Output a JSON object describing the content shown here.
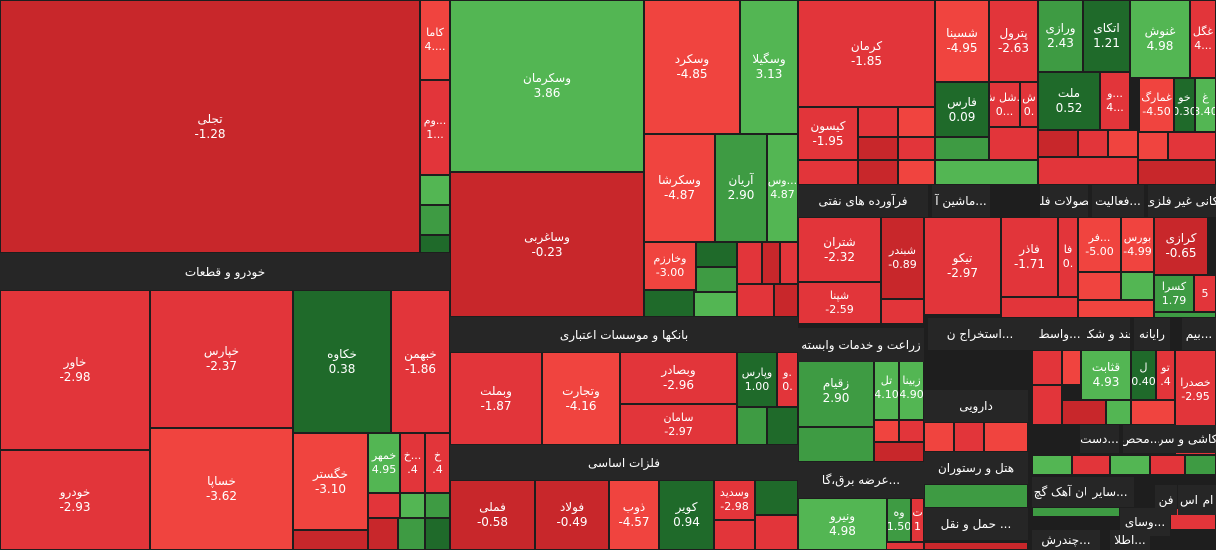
{
  "chart_data": {
    "type": "heatmap",
    "colors": {
      "strong_red": "#c8272b",
      "mid_red": "#e2353a",
      "light_red": "#f0443f",
      "dark_green": "#1f6a2a",
      "mid_green": "#3e9b43",
      "light_green": "#53b653",
      "header_bg": "#262626"
    },
    "sectors": [
      "خودرو و قطعات",
      "بانکها و موسسات اعتباری",
      "فلزات اساسی",
      "فرآورده های نفتی",
      "محصولات فلزی",
      "ماشین آ...",
      "فعالیت...",
      "کانی غیر فلزی",
      "زراعت و خدمات وابسته",
      "عرضه برق،گا...",
      "استخراج ن...",
      "قند و شکر",
      "واسط...",
      "رایانه",
      "بیم...",
      "دارویی",
      "هتل و رستوران",
      "حمل و نقل ...",
      "کاشی و سرامیک",
      "دست...",
      "محص...",
      "سیمان آهک گچ",
      "سایر...",
      "فن",
      "اس",
      "ام",
      "وسای...",
      "چندرش...",
      "اطلا..."
    ],
    "symbols": [
      {
        "name": "تجلی",
        "change": -1.28
      },
      {
        "name": "کاما",
        "change": "4...."
      },
      {
        "name": "وم...",
        "change": "1..."
      },
      {
        "name": "خاور",
        "change": -2.98
      },
      {
        "name": "خودرو",
        "change": -2.93
      },
      {
        "name": "خپارس",
        "change": -2.37
      },
      {
        "name": "خساپا",
        "change": -3.62
      },
      {
        "name": "خکاوه",
        "change": 0.38
      },
      {
        "name": "خبهمن",
        "change": -1.86
      },
      {
        "name": "خگستر",
        "change": -3.1
      },
      {
        "name": "خمهر",
        "change": 4.95
      },
      {
        "name": "خ...",
        "change": ".4"
      },
      {
        "name": "خ",
        "change": ".4"
      },
      {
        "name": "وسکرمان",
        "change": 3.86
      },
      {
        "name": "وساغربی",
        "change": -0.23
      },
      {
        "name": "وسکرد",
        "change": -4.85
      },
      {
        "name": "وسگیلا",
        "change": 3.13
      },
      {
        "name": "وسکرشا",
        "change": -4.87
      },
      {
        "name": "آریان",
        "change": 2.9
      },
      {
        "name": "وس...",
        "change": 4.87
      },
      {
        "name": "وخارزم",
        "change": -3.0
      },
      {
        "name": "وبملت",
        "change": -1.87
      },
      {
        "name": "وتجارت",
        "change": -4.16
      },
      {
        "name": "وبصادر",
        "change": -2.96
      },
      {
        "name": "سامان",
        "change": -2.97
      },
      {
        "name": "وپارس",
        "change": 1.0
      },
      {
        "name": "و.",
        "change": "0."
      },
      {
        "name": "فملی",
        "change": -0.58
      },
      {
        "name": "فولاد",
        "change": -0.49
      },
      {
        "name": "ذوب",
        "change": -4.57
      },
      {
        "name": "کویر",
        "change": 0.94
      },
      {
        "name": "وسدید",
        "change": -2.98
      },
      {
        "name": "کرمان",
        "change": -1.85
      },
      {
        "name": "کیسون",
        "change": -1.95
      },
      {
        "name": "شسینا",
        "change": -4.95
      },
      {
        "name": "پترول",
        "change": -2.63
      },
      {
        "name": "فارس",
        "change": 0.09
      },
      {
        "name": "شل ش...",
        "change": "0..."
      },
      {
        "name": "ش",
        "change": "0."
      },
      {
        "name": "ورازی",
        "change": 2.43
      },
      {
        "name": "اتکای",
        "change": 1.21
      },
      {
        "name": "غنوش",
        "change": 4.98
      },
      {
        "name": "غگل",
        "change": "4..."
      },
      {
        "name": "ملت",
        "change": 0.52
      },
      {
        "name": "و...",
        "change": "4..."
      },
      {
        "name": "غمارگ",
        "change": -4.5
      },
      {
        "name": "خو",
        "change": 0.3
      },
      {
        "name": "غ",
        "change": 3.4
      },
      {
        "name": "شتران",
        "change": -2.32
      },
      {
        "name": "شبندر",
        "change": -0.89
      },
      {
        "name": "شپنا",
        "change": -2.59
      },
      {
        "name": "تیکو",
        "change": -2.97
      },
      {
        "name": "فاذر",
        "change": -1.71
      },
      {
        "name": "فا",
        "change": "0."
      },
      {
        "name": "فر...",
        "change": -5.0
      },
      {
        "name": "بورس",
        "change": -4.99
      },
      {
        "name": "کرازی",
        "change": -0.65
      },
      {
        "name": "کسرا",
        "change": 1.79
      },
      {
        "name": "5",
        "change": ""
      },
      {
        "name": "زقیام",
        "change": 2.9
      },
      {
        "name": "تل",
        "change": 4.1
      },
      {
        "name": "زبینا",
        "change": 4.9
      },
      {
        "name": "قثابت",
        "change": 4.93
      },
      {
        "name": "ل",
        "change": 0.4
      },
      {
        "name": "تو",
        "change": ".4"
      },
      {
        "name": "خصدرا",
        "change": -2.95
      },
      {
        "name": "ونیرو",
        "change": 4.98
      },
      {
        "name": "وه",
        "change": 1.5
      },
      {
        "name": "ت",
        "change": "1"
      }
    ]
  }
}
